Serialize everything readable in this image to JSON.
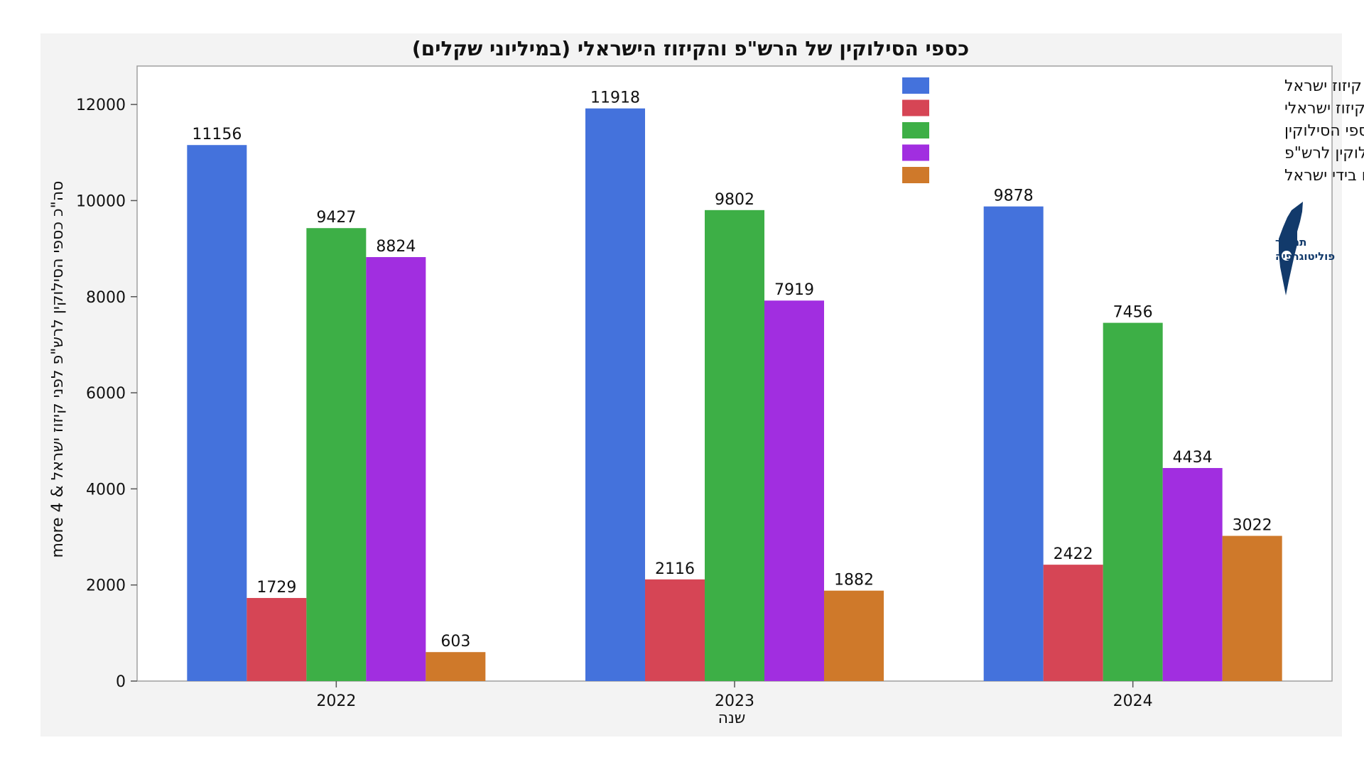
{
  "chart_data": {
    "type": "bar",
    "title": "כספי הסילוקין של הרש\"פ והקיזוז הישראלי (במיליוני שקלים)",
    "xlabel": "שנה",
    "ylabel": "סה\"כ כספי  הסילוקין לרש\"פ לפני קיזוז ישראל & 4 more",
    "categories": [
      "2022",
      "2023",
      "2024"
    ],
    "ylim": [
      0,
      12800
    ],
    "yticks": [
      0,
      2000,
      4000,
      6000,
      8000,
      10000,
      12000
    ],
    "grid": false,
    "legend_position": "top-right",
    "series": [
      {
        "name": "סה\"כ כספי  הסילוקין לרש\"פ לפני קיזוז ישראל",
        "color": "#4472dc",
        "values": [
          11156,
          11918,
          9878
        ]
      },
      {
        "name": "סה\"כ קיזוז ישראלי",
        "color": "#d64555",
        "values": [
          1729,
          2116,
          2422
        ]
      },
      {
        "name": "סה\"כ כספי הסילוקין",
        "color": "#3daf46",
        "values": [
          9427,
          9802,
          7456
        ]
      },
      {
        "name": "העברת כספי הסילוקין לרש\"פ",
        "color": "#a12ee0",
        "values": [
          8824,
          7919,
          4434
        ]
      },
      {
        "name": "כספי סילוקין מוחזקים בידי ישראל",
        "color": "#cf792a",
        "values": [
          603,
          1882,
          3022
        ]
      }
    ]
  },
  "logo": {
    "line1": "תמרור",
    "line2": "פוליטוגרפיה",
    "color": "#123a6b"
  }
}
